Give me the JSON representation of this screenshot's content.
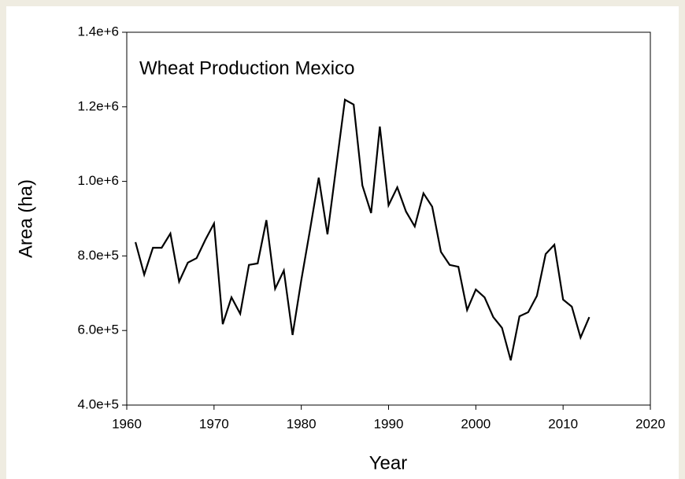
{
  "chart_data": {
    "type": "line",
    "title": "Wheat Production Mexico",
    "x_label": "Year",
    "y_label": "Area (ha)",
    "color": "#000000",
    "x": [
      1961,
      1962,
      1963,
      1964,
      1965,
      1966,
      1967,
      1968,
      1969,
      1970,
      1971,
      1972,
      1973,
      1974,
      1975,
      1976,
      1977,
      1978,
      1979,
      1980,
      1981,
      1982,
      1983,
      1984,
      1985,
      1986,
      1987,
      1988,
      1989,
      1990,
      1991,
      1992,
      1993,
      1994,
      1995,
      1996,
      1997,
      1998,
      1999,
      2000,
      2001,
      2002,
      2003,
      2004,
      2005,
      2006,
      2007,
      2008,
      2009,
      2010,
      2011,
      2012,
      2013
    ],
    "values": [
      837000,
      750000,
      822000,
      822000,
      860000,
      731000,
      782000,
      794000,
      843000,
      887000,
      617000,
      689000,
      645000,
      776000,
      780000,
      896000,
      712000,
      761000,
      588000,
      735000,
      870000,
      1010000,
      858000,
      1039000,
      1219000,
      1206000,
      989000,
      915000,
      1147000,
      936000,
      984000,
      919000,
      879000,
      968000,
      932000,
      811000,
      776000,
      771000,
      655000,
      710000,
      689000,
      636000,
      607000,
      520000,
      638000,
      649000,
      693000,
      805000,
      830000,
      683000,
      664000,
      581000,
      636000
    ],
    "xlim": [
      1960,
      2020
    ],
    "xticks": [
      1960,
      1970,
      1980,
      1990,
      2000,
      2010,
      2020
    ],
    "ylim": [
      400000,
      1400000
    ],
    "yticks": [
      {
        "value": 400000,
        "label": "4.0e+5"
      },
      {
        "value": 600000,
        "label": "6.0e+5"
      },
      {
        "value": 800000,
        "label": "8.0e+5"
      },
      {
        "value": 1000000,
        "label": "1.0e+6"
      },
      {
        "value": 1200000,
        "label": "1.2e+6"
      },
      {
        "value": 1400000,
        "label": "1.4e+6"
      }
    ],
    "grid": false
  }
}
